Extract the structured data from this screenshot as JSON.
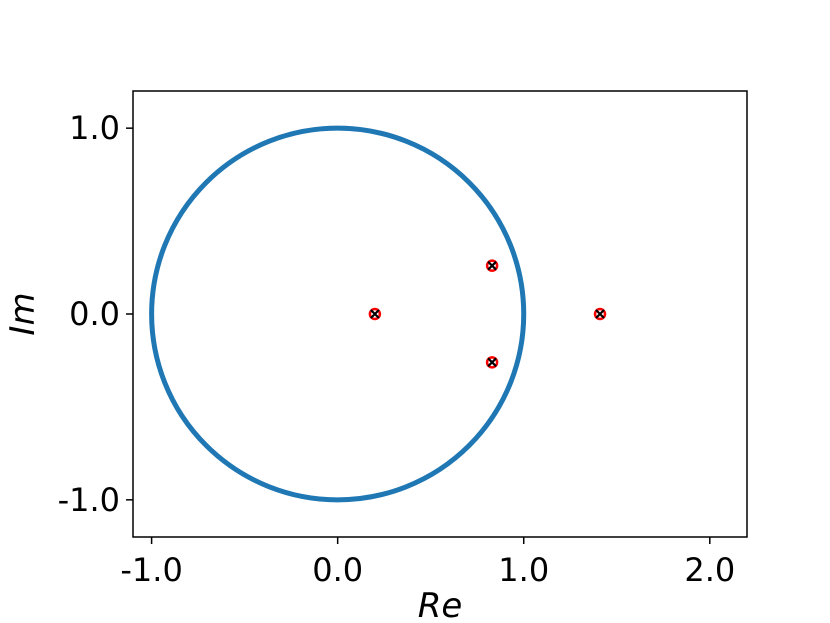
{
  "chart_data": {
    "type": "scatter",
    "title": "",
    "xlabel": "Re",
    "ylabel": "Im",
    "xlim": [
      -1.1,
      2.2
    ],
    "ylim": [
      -1.2,
      1.2
    ],
    "x_ticks": [
      {
        "value": -1.0,
        "label": "-1.0"
      },
      {
        "value": 0.0,
        "label": "0.0"
      },
      {
        "value": 1.0,
        "label": "1.0"
      },
      {
        "value": 2.0,
        "label": "2.0"
      }
    ],
    "y_ticks": [
      {
        "value": 1.0,
        "label": "1.0"
      },
      {
        "value": 0.0,
        "label": "0.0"
      },
      {
        "value": -1.0,
        "label": "-1.0"
      }
    ],
    "grid": false,
    "legend": "none",
    "unit_circle": {
      "center": [
        0,
        0
      ],
      "radius": 1.0,
      "color": "#1f77b4"
    },
    "points": [
      {
        "x": 0.2,
        "y": 0.0
      },
      {
        "x": 0.83,
        "y": 0.26
      },
      {
        "x": 0.83,
        "y": -0.26
      },
      {
        "x": 1.41,
        "y": 0.0
      }
    ],
    "marker_colors": {
      "circle": "#ff0000",
      "cross": "#000000"
    }
  }
}
